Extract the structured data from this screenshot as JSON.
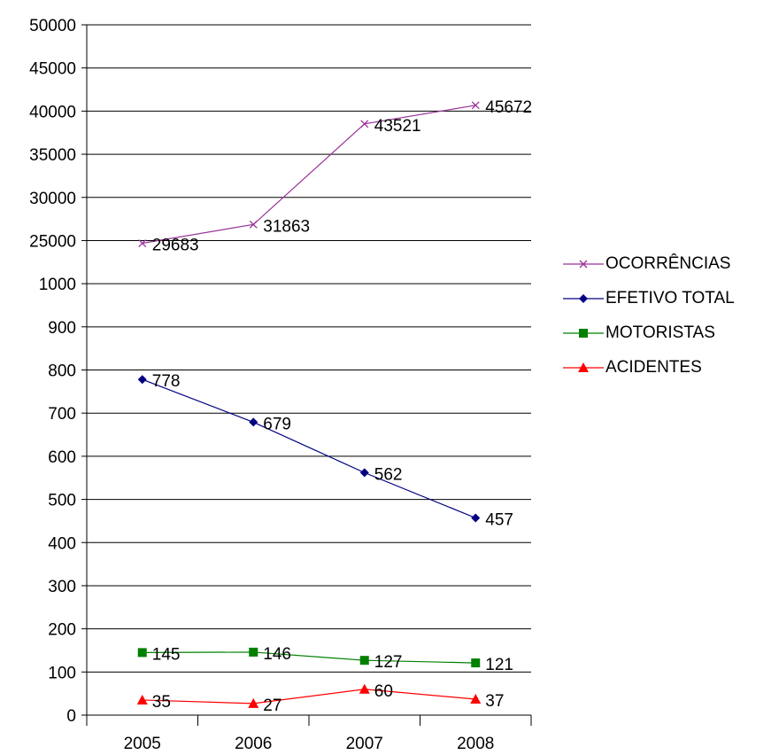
{
  "chart_data": {
    "type": "line",
    "title": "",
    "xlabel": "",
    "ylabel": "",
    "categories": [
      "2005",
      "2006",
      "2007",
      "2008"
    ],
    "y_tick_labels": [
      "0",
      "100",
      "200",
      "300",
      "400",
      "500",
      "600",
      "700",
      "800",
      "900",
      "1000",
      "25000",
      "30000",
      "35000",
      "40000",
      "45000",
      "50000"
    ],
    "y_axis_note": "broken scale: 0–1000 in steps of 100, then 25000–50000 in steps of 5000",
    "grid": true,
    "legend_position": "right",
    "series": [
      {
        "name": "OCORRÊNCIAS",
        "values": [
          29683,
          31863,
          43521,
          45672
        ],
        "labels": [
          "29683",
          "31863",
          "43521",
          "45672"
        ],
        "color": "#993399",
        "marker": "x"
      },
      {
        "name": "EFETIVO TOTAL",
        "values": [
          778,
          679,
          562,
          457
        ],
        "labels": [
          "778",
          "679",
          "562",
          "457"
        ],
        "color": "#000080",
        "marker": "diamond"
      },
      {
        "name": "MOTORISTAS",
        "values": [
          145,
          146,
          127,
          121
        ],
        "labels": [
          "145",
          "146",
          "127",
          "121"
        ],
        "color": "#008000",
        "marker": "square"
      },
      {
        "name": "ACIDENTES",
        "values": [
          35,
          27,
          60,
          37
        ],
        "labels": [
          "35",
          "27",
          "60",
          "37"
        ],
        "color": "#ff0000",
        "marker": "triangle"
      }
    ]
  }
}
